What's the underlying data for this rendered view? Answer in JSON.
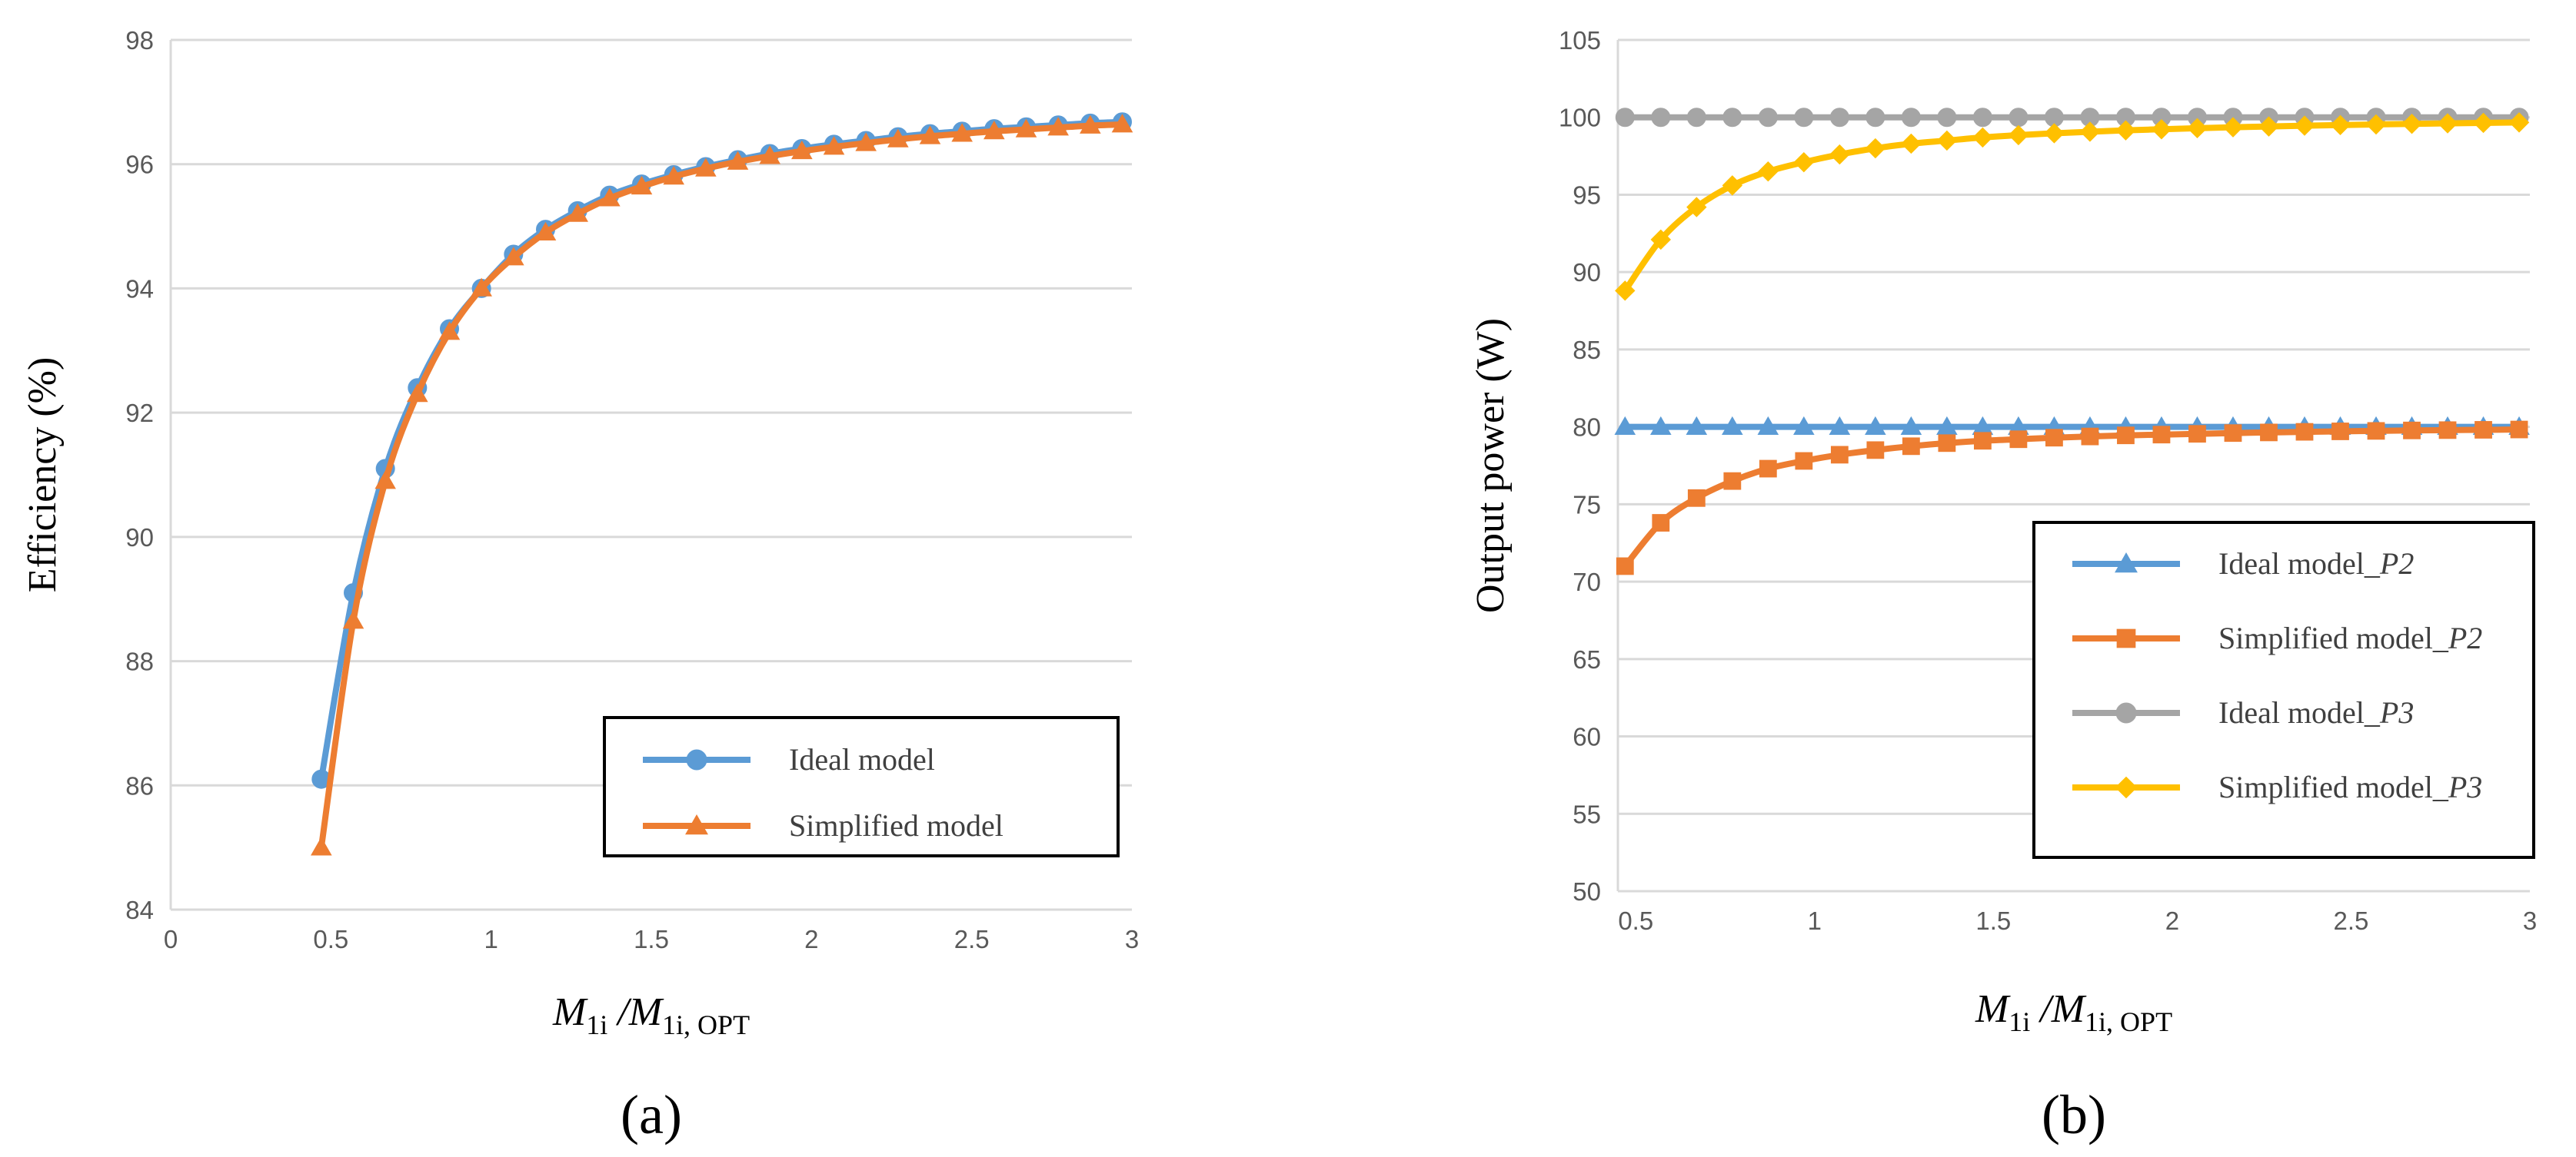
{
  "chart_data": [
    {
      "panel": "(a)",
      "type": "line",
      "xlabel": {
        "main": "M",
        "sub1": "1i",
        "mid": " /M",
        "sub2": "1i, OPT"
      },
      "ylabel": "Efficiency (%)",
      "xlim": [
        0,
        3
      ],
      "ylim": [
        84,
        98
      ],
      "xticks": [
        0,
        0.5,
        1,
        1.5,
        2,
        2.5,
        3
      ],
      "xtick_labels": [
        "0",
        "0.5",
        "1",
        "1.5",
        "2",
        "2.5",
        "3"
      ],
      "yticks": [
        84,
        86,
        88,
        90,
        92,
        94,
        96,
        98
      ],
      "ytick_labels": [
        "84",
        "86",
        "88",
        "90",
        "92",
        "94",
        "96",
        "98"
      ],
      "grid": "horizontal",
      "legend_position": "bottom-right",
      "x": [
        0.47,
        0.57,
        0.67,
        0.77,
        0.87,
        0.97,
        1.07,
        1.17,
        1.27,
        1.37,
        1.47,
        1.57,
        1.67,
        1.77,
        1.87,
        1.97,
        2.07,
        2.17,
        2.27,
        2.37,
        2.47,
        2.57,
        2.67,
        2.77,
        2.87,
        2.97
      ],
      "series": [
        {
          "name": "Ideal model",
          "sub": "",
          "color": "#5B9BD5",
          "marker": "circle",
          "values": [
            86.1,
            89.1,
            91.1,
            92.4,
            93.35,
            94.0,
            94.55,
            94.95,
            95.25,
            95.5,
            95.68,
            95.83,
            95.96,
            96.07,
            96.17,
            96.25,
            96.32,
            96.38,
            96.44,
            96.49,
            96.53,
            96.57,
            96.6,
            96.63,
            96.66,
            96.68
          ]
        },
        {
          "name": "Simplified model",
          "sub": "",
          "color": "#ED7D31",
          "marker": "triangle",
          "values": [
            85.0,
            88.65,
            90.9,
            92.3,
            93.3,
            94.0,
            94.5,
            94.9,
            95.2,
            95.45,
            95.64,
            95.8,
            95.93,
            96.04,
            96.13,
            96.21,
            96.28,
            96.34,
            96.4,
            96.45,
            96.49,
            96.53,
            96.56,
            96.59,
            96.62,
            96.64
          ]
        }
      ]
    },
    {
      "panel": "(b)",
      "type": "line",
      "xlabel": {
        "main": "M",
        "sub1": "1i",
        "mid": " /M",
        "sub2": "1i, OPT"
      },
      "ylabel": "Output power (W)",
      "xlim": [
        0.45,
        3
      ],
      "ylim": [
        50,
        105
      ],
      "xticks": [
        0.5,
        1,
        1.5,
        2,
        2.5,
        3
      ],
      "xtick_labels": [
        "0.5",
        "1",
        "1.5",
        "2",
        "2.5",
        "3"
      ],
      "yticks": [
        50,
        55,
        60,
        65,
        70,
        75,
        80,
        85,
        90,
        95,
        100,
        105
      ],
      "ytick_labels": [
        "50",
        "55",
        "60",
        "65",
        "70",
        "75",
        "80",
        "85",
        "90",
        "95",
        "100",
        "105"
      ],
      "grid": "horizontal",
      "legend_position": "bottom-right",
      "x": [
        0.47,
        0.57,
        0.67,
        0.77,
        0.87,
        0.97,
        1.07,
        1.17,
        1.27,
        1.37,
        1.47,
        1.57,
        1.67,
        1.77,
        1.87,
        1.97,
        2.07,
        2.17,
        2.27,
        2.37,
        2.47,
        2.57,
        2.67,
        2.77,
        2.87,
        2.97
      ],
      "series": [
        {
          "name": "Ideal model_",
          "sub": "P2",
          "color": "#5B9BD5",
          "marker": "triangle",
          "values": [
            80,
            80,
            80,
            80,
            80,
            80,
            80,
            80,
            80,
            80,
            80,
            80,
            80,
            80,
            80,
            80,
            80,
            80,
            80,
            80,
            80,
            80,
            80,
            80,
            80,
            80
          ]
        },
        {
          "name": "Simplified model_",
          "sub": "P2",
          "color": "#ED7D31",
          "marker": "square",
          "values": [
            71.0,
            73.8,
            75.4,
            76.5,
            77.3,
            77.8,
            78.2,
            78.5,
            78.75,
            78.95,
            79.1,
            79.2,
            79.3,
            79.38,
            79.45,
            79.5,
            79.55,
            79.6,
            79.64,
            79.68,
            79.71,
            79.74,
            79.77,
            79.79,
            79.81,
            79.83
          ]
        },
        {
          "name": "Ideal model_",
          "sub": "P3",
          "color": "#A5A5A5",
          "marker": "circle",
          "values": [
            100,
            100,
            100,
            100,
            100,
            100,
            100,
            100,
            100,
            100,
            100,
            100,
            100,
            100,
            100,
            100,
            100,
            100,
            100,
            100,
            100,
            100,
            100,
            100,
            100,
            100
          ]
        },
        {
          "name": "Simplified model_",
          "sub": "P3",
          "color": "#FFC000",
          "marker": "diamond",
          "values": [
            88.8,
            92.1,
            94.2,
            95.6,
            96.5,
            97.1,
            97.6,
            98.0,
            98.3,
            98.5,
            98.7,
            98.85,
            98.97,
            99.07,
            99.16,
            99.23,
            99.3,
            99.36,
            99.41,
            99.46,
            99.5,
            99.54,
            99.58,
            99.61,
            99.64,
            99.67
          ]
        }
      ]
    }
  ]
}
